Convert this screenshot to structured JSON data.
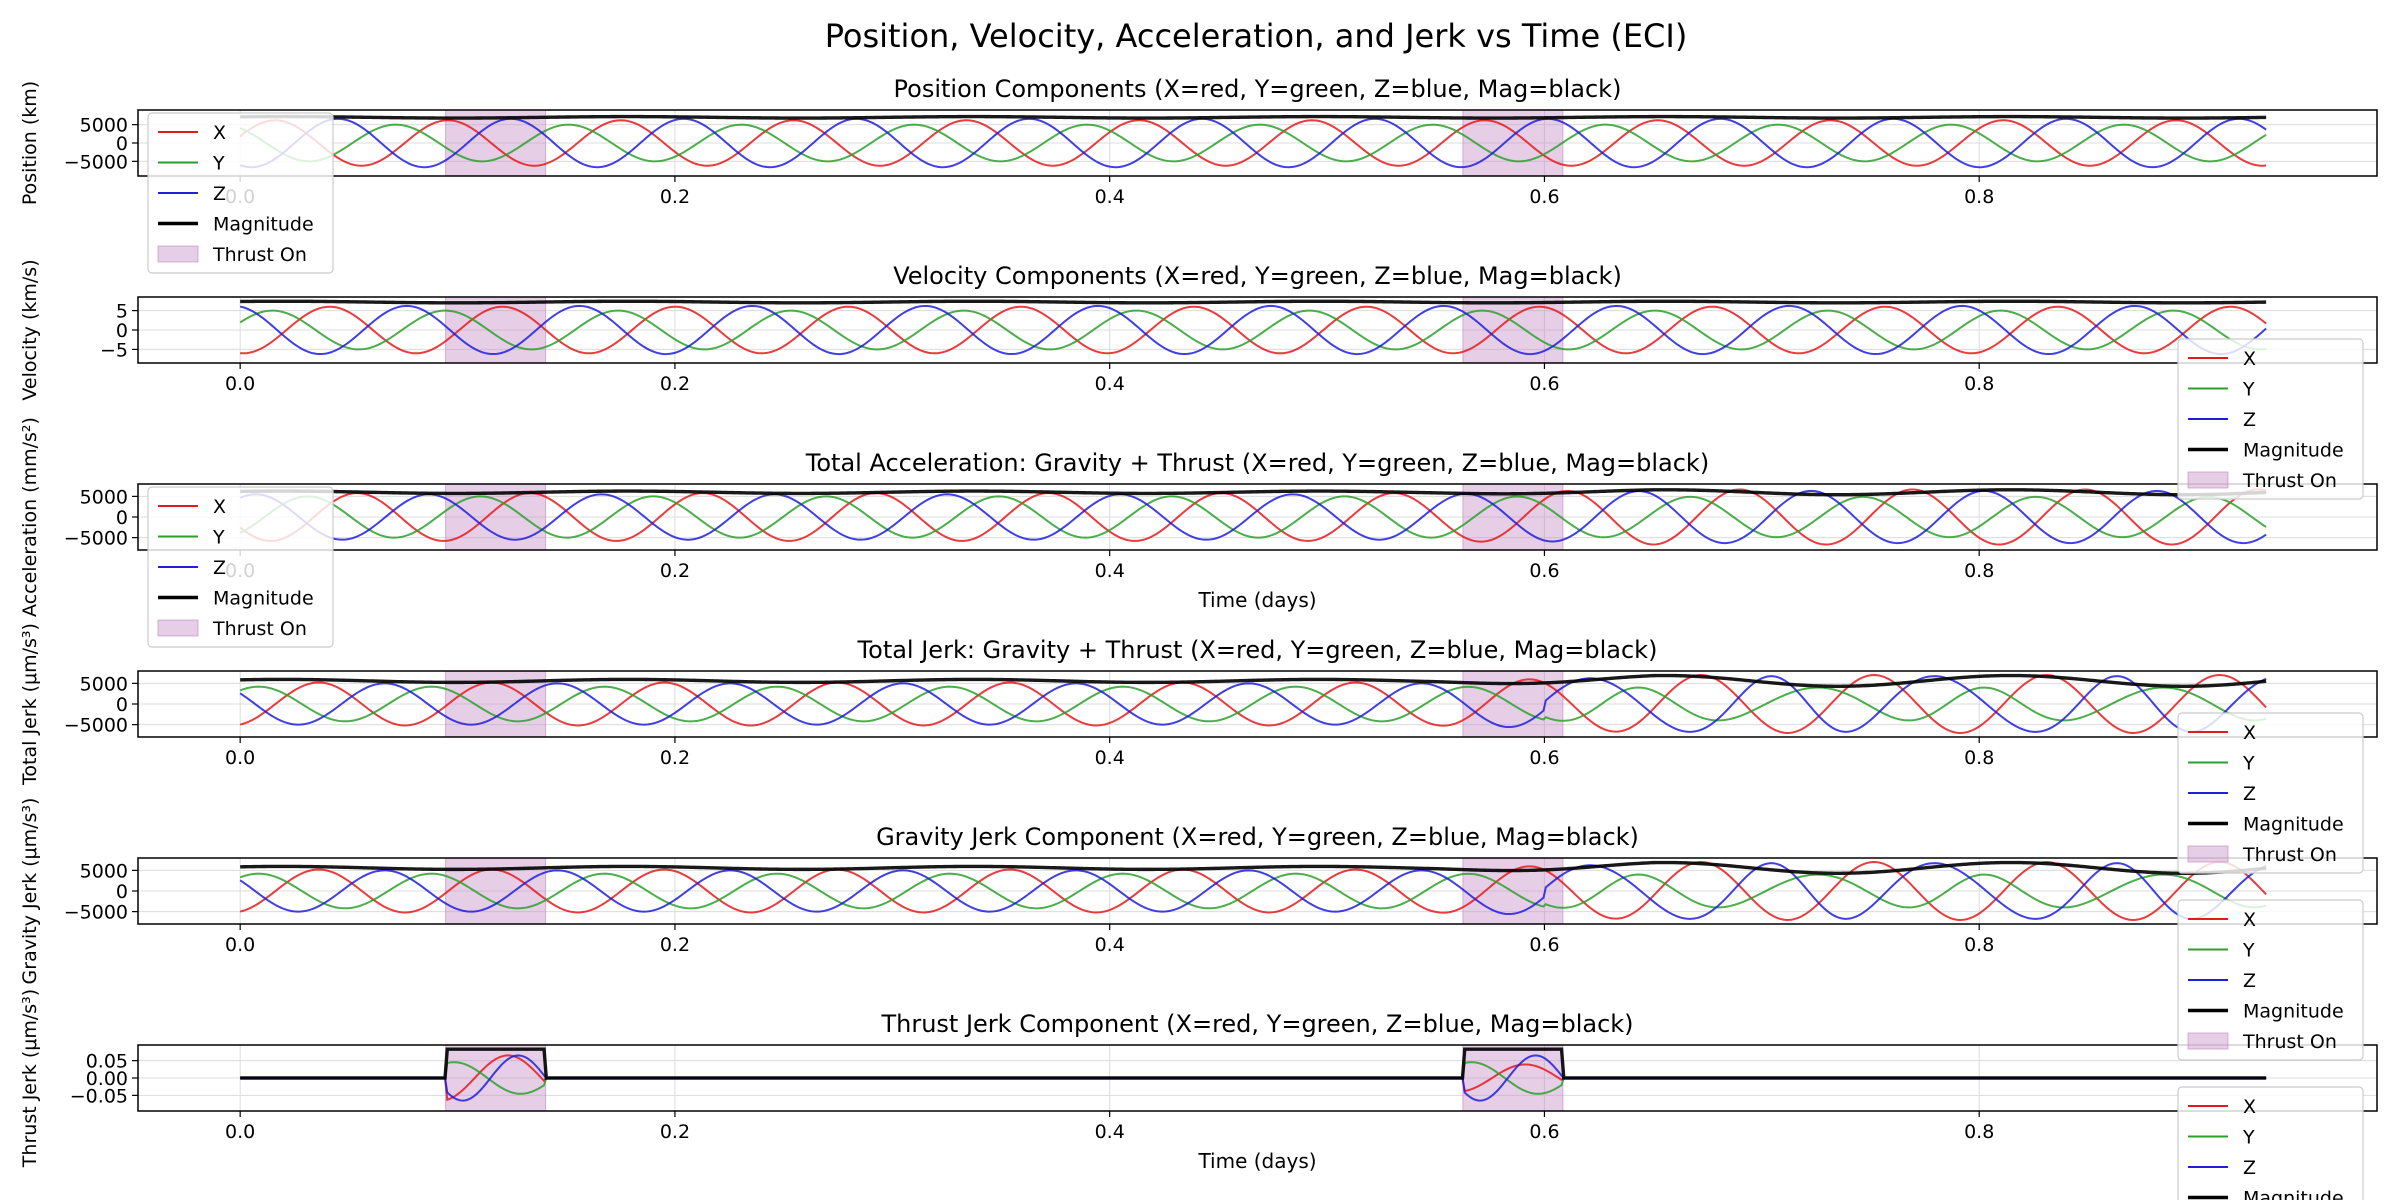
{
  "figure": {
    "title": "Position, Velocity, Acceleration, and Jerk vs Time (ECI)"
  },
  "style": {
    "colors": {
      "X": "#e41a1c",
      "Y": "#2ca02c",
      "Z": "#1f1fdd",
      "Magnitude": "#000000",
      "thrust": "#c084c0"
    },
    "legend_labels": [
      "X",
      "Y",
      "Z",
      "Magnitude",
      "Thrust On"
    ]
  },
  "thrust_windows_days": [
    [
      0.0945,
      0.1405
    ],
    [
      0.5625,
      0.6085
    ]
  ],
  "chart_data": [
    {
      "type": "line",
      "title": "Position Components (X=red, Y=green, Z=blue, Mag=black)",
      "ylabel": "Position (km)",
      "xlabel": "",
      "xlim": [
        -0.047,
        0.983
      ],
      "ylim": [
        -9000,
        9000
      ],
      "x_ticks": [
        "0.0",
        "0.2",
        "0.4",
        "0.6",
        "0.8"
      ],
      "y_ticks": [
        {
          "value": 5000,
          "label": "5000"
        },
        {
          "value": 0,
          "label": "0"
        },
        {
          "value": -5000,
          "label": "−5000"
        }
      ],
      "legend_placement": "upper-left",
      "grid": true,
      "series_model": {
        "t_end": 0.932,
        "period_days": 0.0795,
        "amplitude": [
          6200,
          5000,
          6600
        ],
        "phase": [
          0.3,
          2.2,
          4.3
        ],
        "magnitude": {
          "base": 7000,
          "wave": 500
        },
        "grow_after_burn": 0
      },
      "series": [
        {
          "name": "X",
          "color": "#e41a1c"
        },
        {
          "name": "Y",
          "color": "#2ca02c"
        },
        {
          "name": "Z",
          "color": "#1f1fdd"
        },
        {
          "name": "Magnitude",
          "color": "#000000"
        }
      ]
    },
    {
      "type": "line",
      "title": "Velocity Components (X=red, Y=green, Z=blue, Mag=black)",
      "ylabel": "Velocity (km/s)",
      "xlabel": "",
      "xlim": [
        -0.047,
        0.983
      ],
      "ylim": [
        -8.5,
        8.5
      ],
      "x_ticks": [
        "0.0",
        "0.2",
        "0.4",
        "0.6",
        "0.8"
      ],
      "y_ticks": [
        {
          "value": 5,
          "label": "5"
        },
        {
          "value": 0,
          "label": "0"
        },
        {
          "value": -5,
          "label": "−5"
        }
      ],
      "legend_placement": "lower-right",
      "grid": true,
      "series_model": {
        "t_end": 0.932,
        "period_days": 0.0795,
        "amplitude": [
          6.0,
          5.0,
          6.2
        ],
        "phase": [
          4.6,
          0.4,
          1.8
        ],
        "magnitude": {
          "base": 7.2,
          "wave": 0.5
        },
        "grow_after_burn": 0
      },
      "series": [
        {
          "name": "X",
          "color": "#e41a1c"
        },
        {
          "name": "Y",
          "color": "#2ca02c"
        },
        {
          "name": "Z",
          "color": "#1f1fdd"
        },
        {
          "name": "Magnitude",
          "color": "#000000"
        }
      ]
    },
    {
      "type": "line",
      "title": "Total Acceleration: Gravity + Thrust (X=red, Y=green, Z=blue, Mag=black)",
      "ylabel": "Acceleration (mm/s²)",
      "xlabel": "Time (days)",
      "xlim": [
        -0.047,
        0.983
      ],
      "ylim": [
        -8000,
        8000
      ],
      "x_ticks": [
        "0.0",
        "0.2",
        "0.4",
        "0.6",
        "0.8"
      ],
      "y_ticks": [
        {
          "value": 5000,
          "label": "5000"
        },
        {
          "value": 0,
          "label": "0"
        },
        {
          "value": -5000,
          "label": "−5000"
        }
      ],
      "legend_placement": "upper-left",
      "grid": true,
      "series_model": {
        "t_end": 0.932,
        "period_days": 0.0795,
        "amplitude": [
          5800,
          5000,
          5500
        ],
        "phase": [
          3.6,
          5.4,
          1.0
        ],
        "magnitude": {
          "base": 6000,
          "wave": 700
        },
        "grow_after_burn": 0.15
      },
      "series": [
        {
          "name": "X",
          "color": "#e41a1c"
        },
        {
          "name": "Y",
          "color": "#2ca02c"
        },
        {
          "name": "Z",
          "color": "#1f1fdd"
        },
        {
          "name": "Magnitude",
          "color": "#000000"
        }
      ]
    },
    {
      "type": "line",
      "title": "Total Jerk: Gravity + Thrust (X=red, Y=green, Z=blue, Mag=black)",
      "ylabel": "Total Jerk (μm/s³)",
      "xlabel": "",
      "xlim": [
        -0.047,
        0.983
      ],
      "ylim": [
        -8000,
        8000
      ],
      "x_ticks": [
        "0.0",
        "0.2",
        "0.4",
        "0.6",
        "0.8"
      ],
      "y_ticks": [
        {
          "value": 5000,
          "label": "5000"
        },
        {
          "value": 0,
          "label": "0"
        },
        {
          "value": -5000,
          "label": "−5000"
        }
      ],
      "legend_placement": "lower-right",
      "grid": true,
      "series_model": {
        "t_end": 0.932,
        "period_days": 0.0795,
        "amplitude": [
          5200,
          4200,
          5000
        ],
        "phase": [
          5.0,
          0.9,
          2.6
        ],
        "magnitude": {
          "base": 5600,
          "wave": 900
        },
        "grow_after_burn": 0.35
      },
      "series": [
        {
          "name": "X",
          "color": "#e41a1c"
        },
        {
          "name": "Y",
          "color": "#2ca02c"
        },
        {
          "name": "Z",
          "color": "#1f1fdd"
        },
        {
          "name": "Magnitude",
          "color": "#000000"
        }
      ]
    },
    {
      "type": "line",
      "title": "Gravity Jerk Component (X=red, Y=green, Z=blue, Mag=black)",
      "ylabel": "Gravity Jerk (μm/s³)",
      "xlabel": "",
      "xlim": [
        -0.047,
        0.983
      ],
      "ylim": [
        -8000,
        8000
      ],
      "x_ticks": [
        "0.0",
        "0.2",
        "0.4",
        "0.6",
        "0.8"
      ],
      "y_ticks": [
        {
          "value": 5000,
          "label": "5000"
        },
        {
          "value": 0,
          "label": "0"
        },
        {
          "value": -5000,
          "label": "−5000"
        }
      ],
      "legend_placement": "lower-right",
      "grid": true,
      "series_model": {
        "t_end": 0.932,
        "period_days": 0.0795,
        "amplitude": [
          5200,
          4200,
          5000
        ],
        "phase": [
          5.0,
          0.9,
          2.6
        ],
        "magnitude": {
          "base": 5600,
          "wave": 900
        },
        "grow_after_burn": 0.35
      },
      "series": [
        {
          "name": "X",
          "color": "#e41a1c"
        },
        {
          "name": "Y",
          "color": "#2ca02c"
        },
        {
          "name": "Z",
          "color": "#1f1fdd"
        },
        {
          "name": "Magnitude",
          "color": "#000000"
        }
      ]
    },
    {
      "type": "line",
      "title": "Thrust Jerk Component (X=red, Y=green, Z=blue, Mag=black)",
      "ylabel": "Thrust Jerk (μm/s³)",
      "xlabel": "Time (days)",
      "xlim": [
        -0.047,
        0.983
      ],
      "ylim": [
        -0.095,
        0.095
      ],
      "x_ticks": [
        "0.0",
        "0.2",
        "0.4",
        "0.6",
        "0.8"
      ],
      "y_ticks": [
        {
          "value": 0.05,
          "label": "0.05"
        },
        {
          "value": 0.0,
          "label": "0.00"
        },
        {
          "value": -0.05,
          "label": "−0.05"
        }
      ],
      "legend_placement": "lower-right",
      "grid": true,
      "series_model": {
        "t_end": 0.932,
        "thrust_only": true,
        "pulse_magnitude": 0.083,
        "pulse_amplitude": 0.065
      },
      "series": [
        {
          "name": "X",
          "color": "#e41a1c"
        },
        {
          "name": "Y",
          "color": "#2ca02c"
        },
        {
          "name": "Z",
          "color": "#1f1fdd"
        },
        {
          "name": "Magnitude",
          "color": "#000000"
        }
      ]
    }
  ]
}
